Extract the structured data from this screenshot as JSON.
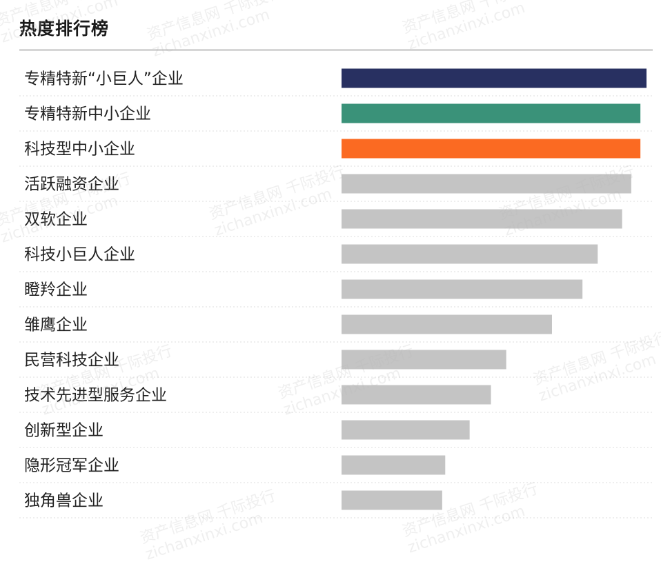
{
  "title": "热度排行榜",
  "watermark": {
    "line1": "资产信息网 千际投行",
    "line2": "zichanxinxi.com"
  },
  "colors": {
    "highlight_1": "#283061",
    "highlight_2": "#3a9279",
    "highlight_3": "#fb6a22",
    "default_bar": "#c4c4c4"
  },
  "chart_data": {
    "type": "bar",
    "orientation": "horizontal",
    "title": "热度排行榜",
    "xlabel": "",
    "ylabel": "",
    "xlim": [
      0,
      100
    ],
    "grid": false,
    "categories": [
      "专精特新“小巨人”企业",
      "专精特新中小企业",
      "科技型中小企业",
      "活跃融资企业",
      "双软企业",
      "科技小巨人企业",
      "瞪羚企业",
      "雏鹰企业",
      "民营科技企业",
      "技术先进型服务企业",
      "创新型企业",
      "隐形冠军企业",
      "独角兽企业"
    ],
    "values": [
      100,
      98,
      98,
      95,
      92,
      84,
      79,
      69,
      54,
      49,
      42,
      34,
      33
    ],
    "bar_colors": [
      "#283061",
      "#3a9279",
      "#fb6a22",
      "#c4c4c4",
      "#c4c4c4",
      "#c4c4c4",
      "#c4c4c4",
      "#c4c4c4",
      "#c4c4c4",
      "#c4c4c4",
      "#c4c4c4",
      "#c4c4c4",
      "#c4c4c4"
    ]
  }
}
